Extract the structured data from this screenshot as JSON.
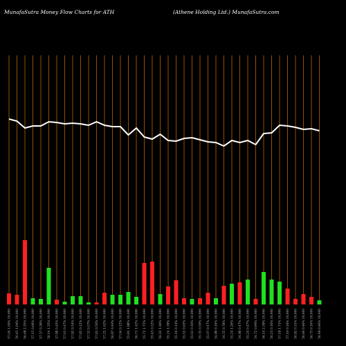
{
  "chart_data": {
    "type": "moneyflow",
    "title": "MunafaSutra  Money  Flow  Charts for ATH",
    "subtitle": "(Athene   Holding Ltd.) MunafaSutra.com",
    "categories": [
      "57.04 1.04% 10,000",
      "56.45 1.04% 10,000",
      "56.69 2.35% 10,000",
      "57.15 0.66% 10,000",
      "57.37 0.38% 10,000",
      "58.14 1.35% 10,000",
      "57.88 0.45% 10,000",
      "57.61 0.47% 10,000",
      "57.92 0.54% 10,000",
      "57.85 0.12% 10,000",
      "57.52 0.57% 10,000",
      "57.81 0.50% 10,000",
      "57.22 1.02% 10,000",
      "56.97 0.44% 10,000",
      "57.04 0.12% 10,000",
      "55.91 1.98% 10,000",
      "56.71 1.42% 10,000",
      "55.72 1.75% 10,000",
      "55.43 0.52% 10,000",
      "56.02 1.06% 10,000",
      "55.24 1.39% 10,000",
      "55.16 0.14% 10,000",
      "55.52 0.65% 10,000",
      "55.61 0.16% 10,000",
      "55.33 0.50% 10,000",
      "55.07 0.47% 10,000",
      "54.98 0.16% 10,000",
      "54.55 0.78% 10,000",
      "55.24 1.26% 10,000",
      "54.98 0.47% 10,000",
      "55.24 0.47% 10,000",
      "54.72 0.94% 10,000",
      "56.14 2.59% 10,000",
      "56.23 0.16% 10,000",
      "57.19 1.71% 10,000",
      "57.10 0.16% 10,000",
      "56.92 0.31% 10,000",
      "56.66 0.46% 10,000",
      "56.75 0.16% 10,000",
      "56.49 0.46% 10,000"
    ],
    "price": [
      268,
      265,
      255,
      258,
      258,
      264,
      263,
      261,
      262,
      261,
      259,
      264,
      259,
      257,
      257,
      245,
      255,
      242,
      239,
      246,
      237,
      236,
      240,
      241,
      238,
      235,
      234,
      229,
      237,
      234,
      237,
      231,
      247,
      248,
      259,
      258,
      256,
      253,
      254,
      251
    ],
    "values": [
      16,
      14,
      93,
      9,
      8,
      53,
      7,
      4,
      12,
      12,
      3,
      3,
      17,
      14,
      14,
      18,
      11,
      60,
      62,
      15,
      26,
      35,
      9,
      8,
      9,
      17,
      9,
      27,
      30,
      32,
      36,
      8,
      47,
      36,
      33,
      23,
      8,
      15,
      11,
      6
    ],
    "colors": [
      "#ff2020",
      "#ff2020",
      "#ff2020",
      "#20e020",
      "#20e020",
      "#20e020",
      "#ff2020",
      "#20e020",
      "#20e020",
      "#20e020",
      "#20e020",
      "#ff2020",
      "#ff2020",
      "#20e020",
      "#20e020",
      "#20e020",
      "#20e020",
      "#ff2020",
      "#ff2020",
      "#20e020",
      "#ff2020",
      "#ff2020",
      "#ff2020",
      "#20e020",
      "#ff2020",
      "#ff2020",
      "#20e020",
      "#ff2020",
      "#20e020",
      "#ff2020",
      "#20e020",
      "#ff2020",
      "#20e020",
      "#20e020",
      "#20e020",
      "#ff2020",
      "#ff2020",
      "#ff2020",
      "#ff2020",
      "#20e020"
    ],
    "line_color": "#ffffff",
    "grid_color": "#b8650a",
    "ylim": [
      0,
      360
    ]
  }
}
